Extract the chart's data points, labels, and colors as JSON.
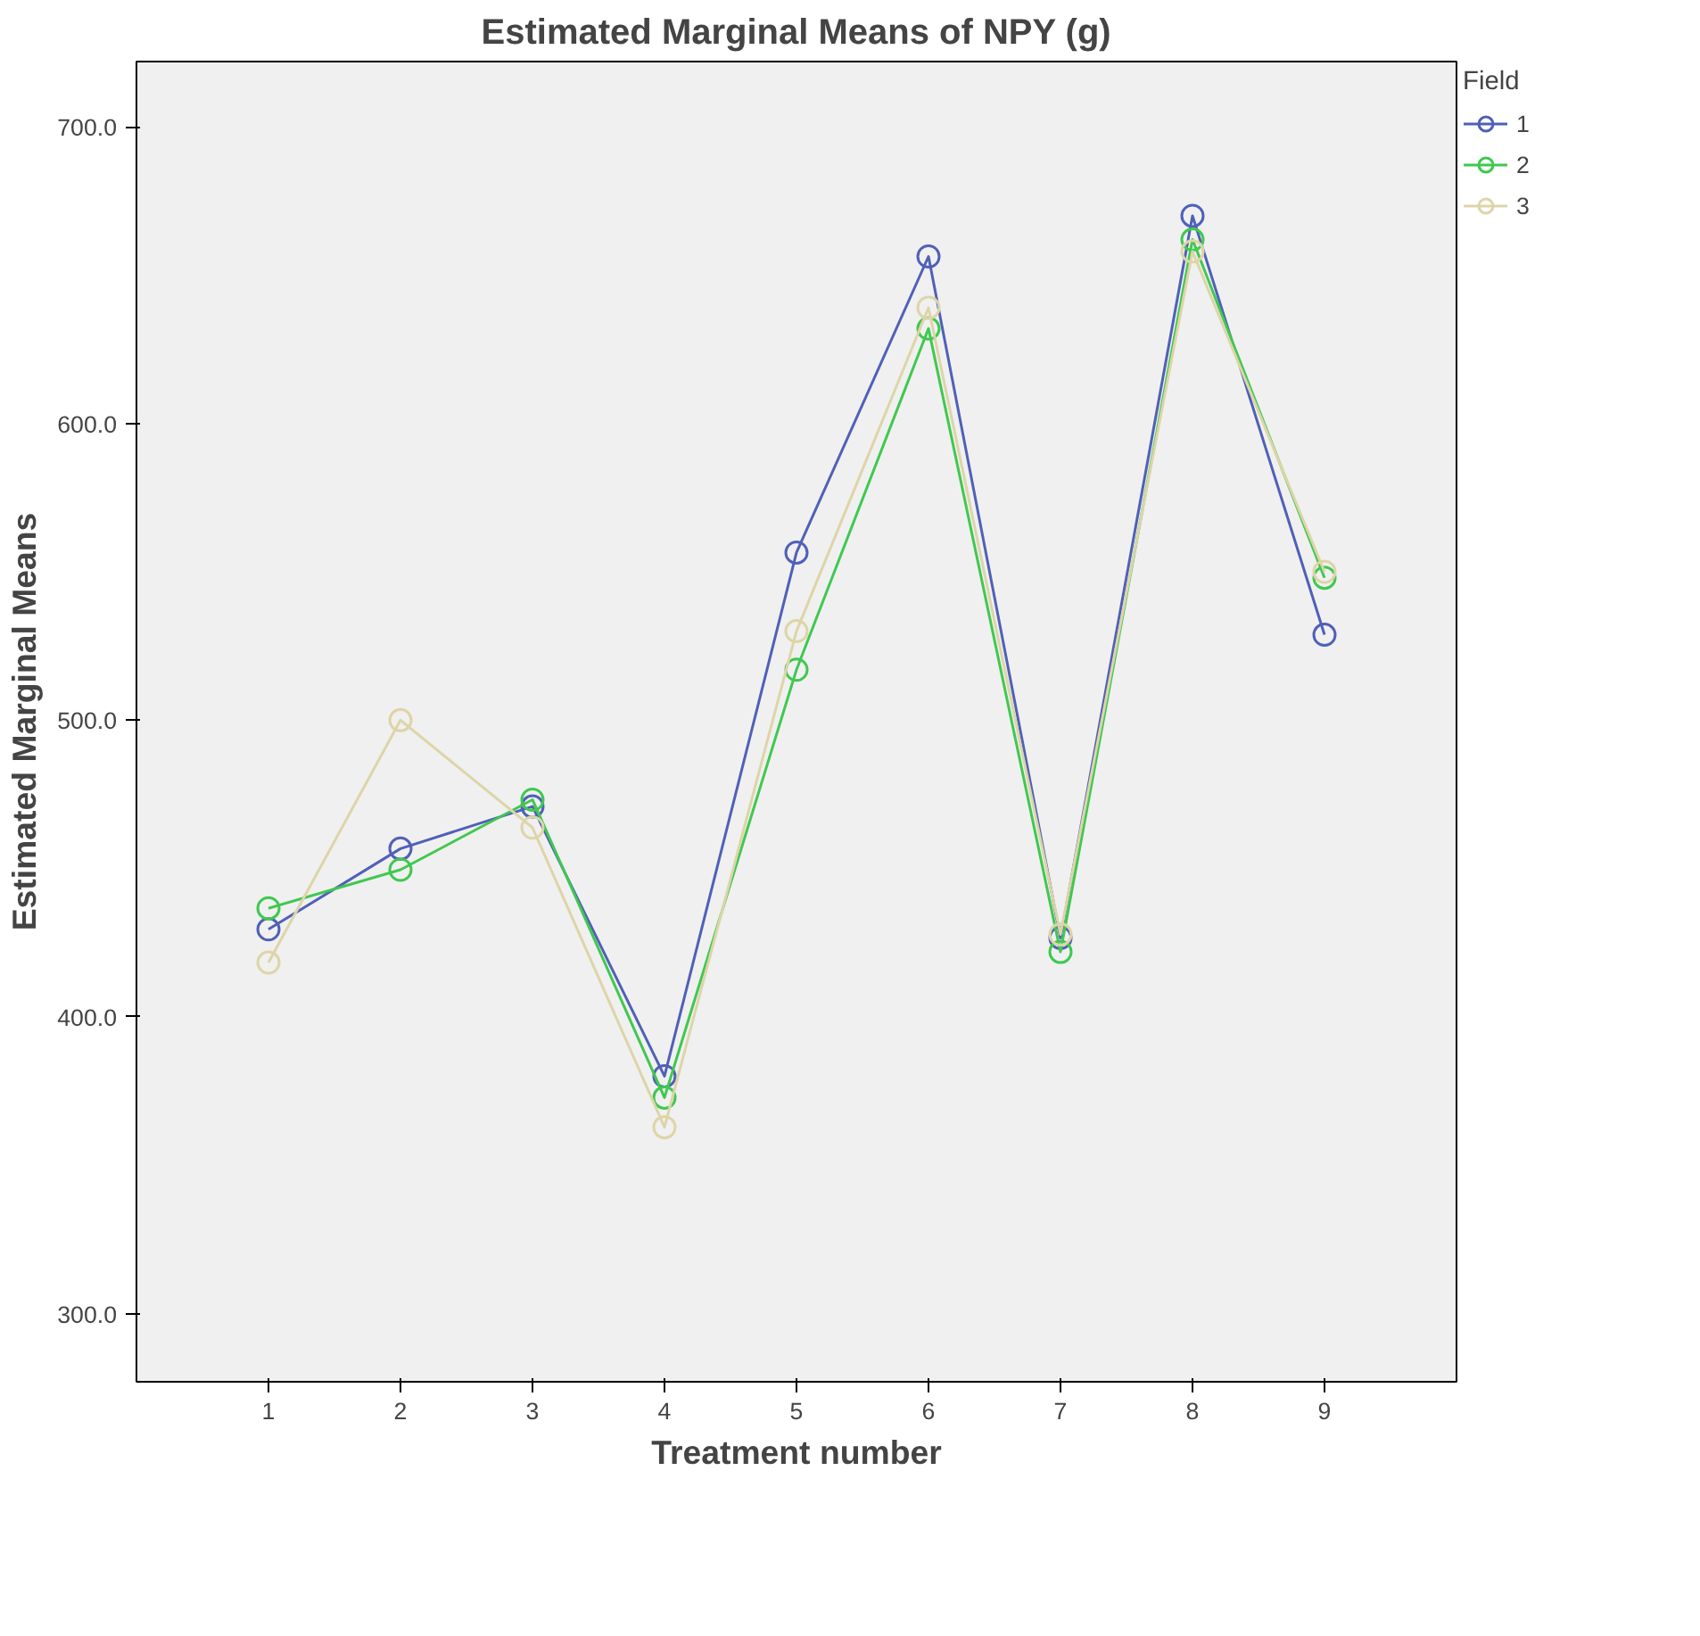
{
  "chart_data": {
    "type": "line",
    "title": "Estimated Marginal Means of NPY (g)",
    "xlabel": "Treatment number",
    "ylabel": "Estimated Marginal Means",
    "legend_title": "Field",
    "categories": [
      "1",
      "2",
      "3",
      "4",
      "5",
      "6",
      "7",
      "8",
      "9"
    ],
    "series": [
      {
        "name": "1",
        "color": "#5060b8",
        "values": [
          429.5,
          456.7,
          470.9,
          380,
          556.5,
          656.3,
          426.6,
          670,
          528.8
        ]
      },
      {
        "name": "2",
        "color": "#40c850",
        "values": [
          436.6,
          449.6,
          473.2,
          372.8,
          517,
          632,
          421.9,
          662,
          548
        ]
      },
      {
        "name": "3",
        "color": "#ddd5a8",
        "values": [
          418.3,
          500,
          463.8,
          362.8,
          530,
          639,
          427.8,
          658,
          550
        ]
      }
    ],
    "ylim": [
      277,
      722
    ],
    "yticks": [
      {
        "value": 300,
        "label": "300.0"
      },
      {
        "value": 400,
        "label": "400.0"
      },
      {
        "value": 500,
        "label": "500.0"
      },
      {
        "value": 600,
        "label": "600.0"
      },
      {
        "value": 700,
        "label": "700.0"
      }
    ],
    "grid": false,
    "legend": "right",
    "marker": "circle",
    "line_style": "solid"
  }
}
